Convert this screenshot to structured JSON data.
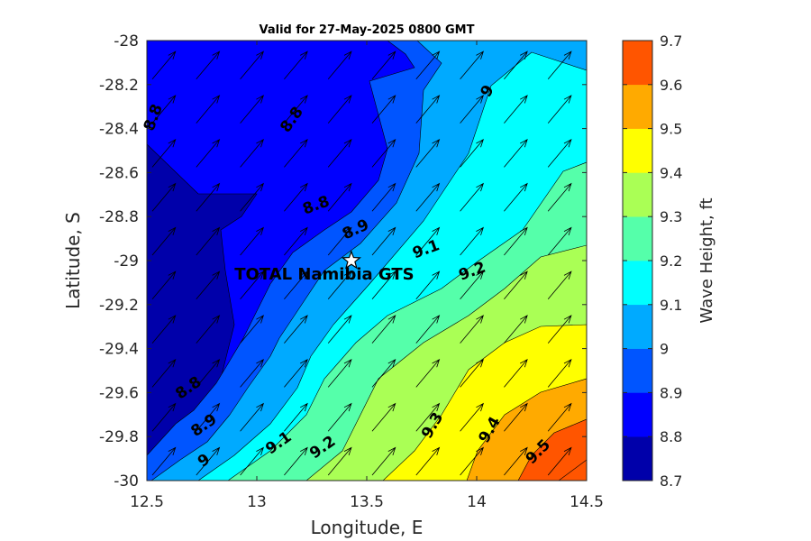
{
  "chart_data": {
    "type": "contour",
    "title": "Valid for 27-May-2025 0800 GMT",
    "xlabel": "Longitude, E",
    "ylabel": "Latitude, S",
    "xlim": [
      12.5,
      14.5
    ],
    "ylim": [
      -30,
      -28
    ],
    "xticks": [
      "12.5",
      "13",
      "13.5",
      "14",
      "14.5"
    ],
    "yticks": [
      "-28",
      "-28.2",
      "-28.4",
      "-28.6",
      "-28.8",
      "-29",
      "-29.2",
      "-29.4",
      "-29.6",
      "-29.8",
      "-30"
    ],
    "colorbar": {
      "label": "Wave Height, ft",
      "levels": [
        8.7,
        8.8,
        8.9,
        9.0,
        9.1,
        9.2,
        9.3,
        9.4,
        9.5,
        9.6,
        9.7
      ],
      "tick_labels": [
        "8.7",
        "8.8",
        "8.9",
        "9",
        "9.1",
        "9.2",
        "9.3",
        "9.4",
        "9.5",
        "9.6",
        "9.7"
      ],
      "colors": [
        "#0000aa",
        "#0000ff",
        "#0055ff",
        "#00aaff",
        "#00ffff",
        "#55ffaa",
        "#aaff55",
        "#ffff00",
        "#ffaa00",
        "#ff5500"
      ]
    },
    "contour_labels": [
      {
        "text": "8.8",
        "lon": 12.53,
        "lat": -28.35,
        "rot": -70
      },
      {
        "text": "8.8",
        "lon": 13.16,
        "lat": -28.36,
        "rot": -55
      },
      {
        "text": "8.8",
        "lon": 13.27,
        "lat": -28.75,
        "rot": -20
      },
      {
        "text": "8.9",
        "lon": 13.45,
        "lat": -28.86,
        "rot": -25
      },
      {
        "text": "9",
        "lon": 14.05,
        "lat": -28.23,
        "rot": -60
      },
      {
        "text": "9.1",
        "lon": 13.77,
        "lat": -28.95,
        "rot": -20
      },
      {
        "text": "9.2",
        "lon": 13.98,
        "lat": -29.05,
        "rot": -20
      },
      {
        "text": "8.8",
        "lon": 12.69,
        "lat": -29.58,
        "rot": -35
      },
      {
        "text": "8.9",
        "lon": 12.76,
        "lat": -29.75,
        "rot": -35
      },
      {
        "text": "9",
        "lon": 12.76,
        "lat": -29.91,
        "rot": -35
      },
      {
        "text": "9.1",
        "lon": 13.1,
        "lat": -29.83,
        "rot": -35
      },
      {
        "text": "9.2",
        "lon": 13.3,
        "lat": -29.85,
        "rot": -35
      },
      {
        "text": "9.3",
        "lon": 13.8,
        "lat": -29.75,
        "rot": -60
      },
      {
        "text": "9.4",
        "lon": 14.06,
        "lat": -29.77,
        "rot": -60
      },
      {
        "text": "9.5",
        "lon": 14.28,
        "lat": -29.87,
        "rot": -45
      }
    ],
    "station": {
      "name": "TOTAL Namibia GTS",
      "lon": 13.43,
      "lat": -29.0
    },
    "wave_direction": {
      "towards_deg": 40,
      "grid_spacing_deg": 0.2
    }
  }
}
